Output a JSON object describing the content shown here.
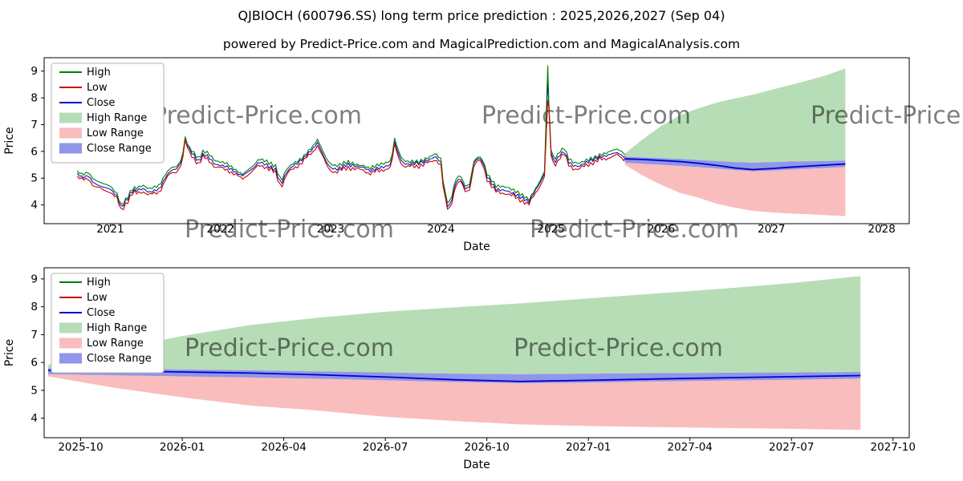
{
  "title": "QJBIOCH (600796.SS) long term price prediction : 2025,2026,2027 (Sep 04)",
  "subtitle": "powered by Predict-Price.com and MagicalPrediction.com and MagicalAnalysis.com",
  "watermark": "Predict-Price.com",
  "colors": {
    "high": "#008000",
    "low": "#cc0000",
    "close": "#0000cc",
    "high_range": "#b7ddb7",
    "low_range": "#f9bdbd",
    "close_range": "#9096e8",
    "watermark": "#9a9a9a",
    "axis": "#000000"
  },
  "legend": [
    {
      "label": "High",
      "type": "line",
      "color_key": "high"
    },
    {
      "label": "Low",
      "type": "line",
      "color_key": "low"
    },
    {
      "label": "Close",
      "type": "line",
      "color_key": "close"
    },
    {
      "label": "High Range",
      "type": "patch",
      "color_key": "high_range"
    },
    {
      "label": "Low Range",
      "type": "patch",
      "color_key": "low_range"
    },
    {
      "label": "Close Range",
      "type": "patch",
      "color_key": "close_range"
    }
  ],
  "history": {
    "sample_step": 0.02,
    "spike": {
      "t": 2024.97,
      "high": 9.2,
      "low": 7.9,
      "close": 8.6
    },
    "anchors": [
      [
        2020.7,
        5.2
      ],
      [
        2020.75,
        5.05
      ],
      [
        2020.8,
        5.1
      ],
      [
        2020.85,
        4.8
      ],
      [
        2020.92,
        4.65
      ],
      [
        2021.0,
        4.55
      ],
      [
        2021.06,
        4.3
      ],
      [
        2021.1,
        3.9
      ],
      [
        2021.15,
        4.2
      ],
      [
        2021.2,
        4.55
      ],
      [
        2021.25,
        4.6
      ],
      [
        2021.3,
        4.65
      ],
      [
        2021.35,
        4.5
      ],
      [
        2021.4,
        4.55
      ],
      [
        2021.45,
        4.6
      ],
      [
        2021.5,
        5.0
      ],
      [
        2021.55,
        5.25
      ],
      [
        2021.6,
        5.3
      ],
      [
        2021.65,
        5.6
      ],
      [
        2021.68,
        6.45
      ],
      [
        2021.71,
        6.1
      ],
      [
        2021.75,
        5.9
      ],
      [
        2021.8,
        5.65
      ],
      [
        2021.85,
        5.95
      ],
      [
        2021.9,
        5.8
      ],
      [
        2021.95,
        5.55
      ],
      [
        2022.0,
        5.5
      ],
      [
        2022.05,
        5.45
      ],
      [
        2022.1,
        5.3
      ],
      [
        2022.15,
        5.15
      ],
      [
        2022.2,
        5.05
      ],
      [
        2022.25,
        5.2
      ],
      [
        2022.3,
        5.35
      ],
      [
        2022.35,
        5.6
      ],
      [
        2022.4,
        5.55
      ],
      [
        2022.45,
        5.45
      ],
      [
        2022.5,
        5.35
      ],
      [
        2022.55,
        4.8
      ],
      [
        2022.6,
        5.25
      ],
      [
        2022.65,
        5.45
      ],
      [
        2022.7,
        5.55
      ],
      [
        2022.75,
        5.7
      ],
      [
        2022.8,
        5.9
      ],
      [
        2022.85,
        6.1
      ],
      [
        2022.88,
        6.3
      ],
      [
        2022.92,
        5.95
      ],
      [
        2022.96,
        5.6
      ],
      [
        2023.0,
        5.4
      ],
      [
        2023.05,
        5.35
      ],
      [
        2023.1,
        5.45
      ],
      [
        2023.15,
        5.55
      ],
      [
        2023.2,
        5.5
      ],
      [
        2023.25,
        5.45
      ],
      [
        2023.3,
        5.4
      ],
      [
        2023.35,
        5.25
      ],
      [
        2023.4,
        5.3
      ],
      [
        2023.45,
        5.35
      ],
      [
        2023.5,
        5.4
      ],
      [
        2023.55,
        5.5
      ],
      [
        2023.58,
        6.35
      ],
      [
        2023.61,
        5.95
      ],
      [
        2023.65,
        5.6
      ],
      [
        2023.7,
        5.55
      ],
      [
        2023.75,
        5.6
      ],
      [
        2023.8,
        5.6
      ],
      [
        2023.85,
        5.65
      ],
      [
        2023.9,
        5.7
      ],
      [
        2023.95,
        5.8
      ],
      [
        2024.0,
        5.55
      ],
      [
        2024.03,
        4.4
      ],
      [
        2024.07,
        3.8
      ],
      [
        2024.1,
        4.2
      ],
      [
        2024.14,
        4.85
      ],
      [
        2024.18,
        4.95
      ],
      [
        2024.22,
        4.6
      ],
      [
        2024.26,
        4.7
      ],
      [
        2024.3,
        5.6
      ],
      [
        2024.34,
        5.8
      ],
      [
        2024.38,
        5.65
      ],
      [
        2024.42,
        5.1
      ],
      [
        2024.46,
        4.85
      ],
      [
        2024.5,
        4.6
      ],
      [
        2024.55,
        4.55
      ],
      [
        2024.6,
        4.5
      ],
      [
        2024.65,
        4.4
      ],
      [
        2024.7,
        4.3
      ],
      [
        2024.75,
        4.2
      ],
      [
        2024.8,
        4.1
      ],
      [
        2024.85,
        4.5
      ],
      [
        2024.9,
        4.85
      ],
      [
        2024.94,
        5.2
      ],
      [
        2024.97,
        8.6
      ],
      [
        2025.0,
        6.0
      ],
      [
        2025.03,
        5.6
      ],
      [
        2025.08,
        5.9
      ],
      [
        2025.12,
        6.0
      ],
      [
        2025.16,
        5.6
      ],
      [
        2025.2,
        5.45
      ],
      [
        2025.25,
        5.4
      ],
      [
        2025.3,
        5.5
      ],
      [
        2025.35,
        5.6
      ],
      [
        2025.4,
        5.7
      ],
      [
        2025.45,
        5.8
      ],
      [
        2025.5,
        5.85
      ],
      [
        2025.55,
        5.95
      ],
      [
        2025.6,
        6.0
      ],
      [
        2025.64,
        5.9
      ],
      [
        2025.67,
        5.8
      ]
    ]
  },
  "forecast": {
    "x": [
      2025.67,
      2025.83,
      2026.0,
      2026.17,
      2026.33,
      2026.5,
      2026.67,
      2026.83,
      2027.0,
      2027.17,
      2027.33,
      2027.5,
      2027.67
    ],
    "high_top": [
      5.92,
      6.45,
      6.95,
      7.35,
      7.6,
      7.82,
      7.98,
      8.12,
      8.3,
      8.48,
      8.65,
      8.85,
      9.1
    ],
    "low_bottom": [
      5.5,
      5.1,
      4.75,
      4.45,
      4.28,
      4.05,
      3.9,
      3.78,
      3.72,
      3.68,
      3.65,
      3.62,
      3.58
    ],
    "close": [
      5.72,
      5.7,
      5.66,
      5.62,
      5.56,
      5.48,
      5.38,
      5.32,
      5.36,
      5.41,
      5.45,
      5.49,
      5.53
    ],
    "close_top": [
      5.8,
      5.78,
      5.75,
      5.72,
      5.68,
      5.64,
      5.6,
      5.58,
      5.6,
      5.62,
      5.63,
      5.64,
      5.66
    ],
    "close_bottom": [
      5.58,
      5.54,
      5.5,
      5.46,
      5.42,
      5.36,
      5.3,
      5.26,
      5.28,
      5.32,
      5.35,
      5.38,
      5.42
    ]
  },
  "chart_data": [
    {
      "type": "line",
      "name": "price-history-and-forecast",
      "xlabel": "Date",
      "ylabel": "Price",
      "show_history": true,
      "show_forecast": true,
      "xlim": [
        2020.4,
        2028.25
      ],
      "ylim": [
        3.3,
        9.5
      ],
      "yticks": [
        4,
        5,
        6,
        7,
        8,
        9
      ],
      "xticks": [
        {
          "v": 2021,
          "label": "2021"
        },
        {
          "v": 2022,
          "label": "2022"
        },
        {
          "v": 2023,
          "label": "2023"
        },
        {
          "v": 2024,
          "label": "2024"
        },
        {
          "v": 2025,
          "label": "2025"
        },
        {
          "v": 2026,
          "label": "2026"
        },
        {
          "v": 2027,
          "label": "2027"
        },
        {
          "v": 2028,
          "label": "2028"
        }
      ]
    },
    {
      "type": "line",
      "name": "forecast-detail",
      "xlabel": "Date",
      "ylabel": "Price",
      "show_history": false,
      "show_forecast": true,
      "xlim": [
        2025.66,
        2027.79
      ],
      "ylim": [
        3.3,
        9.4
      ],
      "yticks": [
        4,
        5,
        6,
        7,
        8,
        9
      ],
      "xticks": [
        {
          "v": 2025.75,
          "label": "2025-10"
        },
        {
          "v": 2026.0,
          "label": "2026-01"
        },
        {
          "v": 2026.25,
          "label": "2026-04"
        },
        {
          "v": 2026.5,
          "label": "2026-07"
        },
        {
          "v": 2026.75,
          "label": "2026-10"
        },
        {
          "v": 2027.0,
          "label": "2027-01"
        },
        {
          "v": 2027.25,
          "label": "2027-04"
        },
        {
          "v": 2027.5,
          "label": "2027-07"
        },
        {
          "v": 2027.75,
          "label": "2027-10"
        }
      ]
    }
  ]
}
